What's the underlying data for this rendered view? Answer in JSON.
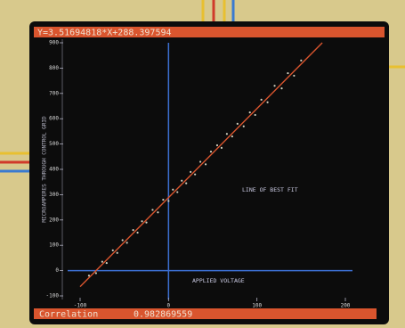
{
  "chart_data": {
    "type": "scatter",
    "fit": {
      "equation": "Y=3.51694818*X+288.397594",
      "slope": 3.51694818,
      "intercept": 288.397594,
      "color": "#d9552e"
    },
    "correlation_label": "Correlation",
    "correlation": 0.982869559,
    "annotation": "LINE OF BEST FIT",
    "x_label": "APPLIED VOLTAGE",
    "y_label": "MICROAMPERES THROUGH CONTROL GRID",
    "x": [
      -90,
      -82,
      -75,
      -70,
      -63,
      -58,
      -52,
      -47,
      -40,
      -35,
      -30,
      -25,
      -18,
      -12,
      -6,
      0,
      5,
      10,
      15,
      20,
      25,
      30,
      36,
      42,
      48,
      55,
      60,
      66,
      72,
      78,
      85,
      92,
      98,
      105,
      112,
      120,
      128,
      135,
      142,
      150
    ],
    "series": [
      {
        "color": "#cfcfbf",
        "values": [
          -20,
          -10,
          35,
          30,
          80,
          70,
          120,
          110,
          160,
          150,
          195,
          190,
          240,
          230,
          280,
          275,
          320,
          310,
          355,
          345,
          390,
          380,
          430,
          420,
          470,
          495,
          485,
          540,
          530,
          580,
          570,
          625,
          615,
          675,
          665,
          730,
          720,
          780,
          770,
          830
        ]
      }
    ],
    "xlim": [
      -100,
      200
    ],
    "ylim": [
      -100,
      900
    ],
    "xticks": [
      -100,
      0,
      100,
      200
    ],
    "yticks": [
      900,
      800,
      700,
      600,
      500,
      400,
      300,
      200,
      100,
      0,
      -100
    ],
    "axis_color": "#3c6fd2"
  }
}
